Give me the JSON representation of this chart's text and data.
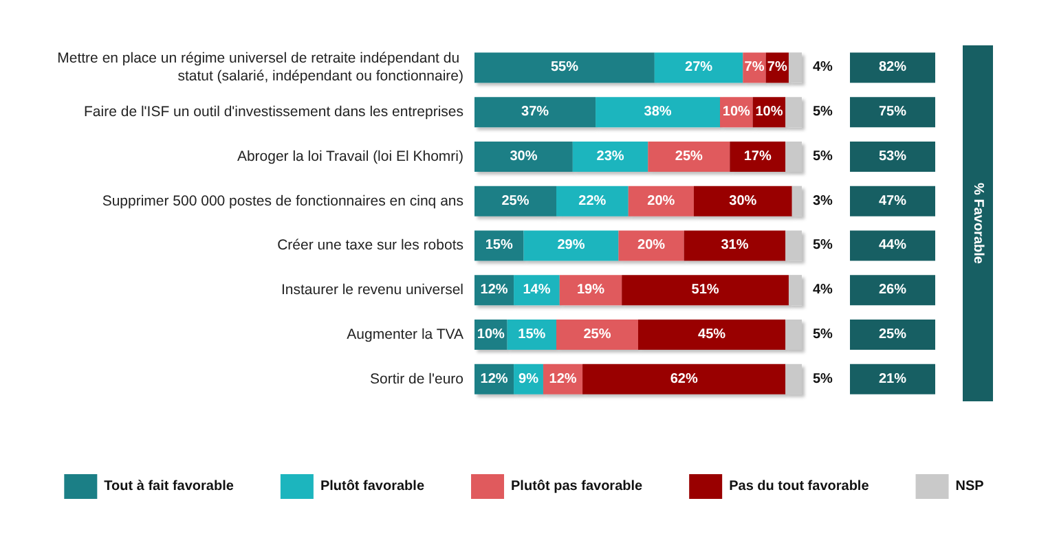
{
  "chart_data": {
    "type": "bar",
    "orientation": "horizontal",
    "stacked": true,
    "tick_labels": "y",
    "grid": false,
    "legend": "bottom",
    "categories": [
      "Mettre en place un régime universel de retraite indépendant du statut (salarié, indépendant ou fonctionnaire)",
      "Faire de l'ISF un outil d'investissement dans les entreprises",
      "Abroger la loi Travail (loi El Khomri)",
      "Supprimer 500 000 postes de fonctionnaires en cinq ans",
      "Créer une taxe sur les robots",
      "Instaurer le revenu universel",
      "Augmenter la TVA",
      "Sortir de l'euro"
    ],
    "series": [
      {
        "name": "Tout à fait favorable",
        "color": "#1b7f86",
        "values": [
          55,
          37,
          30,
          25,
          15,
          12,
          10,
          12
        ],
        "value_labels": [
          "55%",
          "37%",
          "30%",
          "25%",
          "15%",
          "12%",
          "10%",
          "12%"
        ]
      },
      {
        "name": "Plutôt favorable",
        "color": "#1cb5be",
        "values": [
          27,
          38,
          23,
          22,
          29,
          14,
          15,
          9
        ],
        "value_labels": [
          "27%",
          "38%",
          "23%",
          "22%",
          "29%",
          "14%",
          "15%",
          "9%"
        ]
      },
      {
        "name": "Plutôt pas favorable",
        "color": "#e05a5d",
        "values": [
          7,
          10,
          25,
          20,
          20,
          19,
          25,
          12
        ],
        "value_labels": [
          "7%",
          "10%",
          "25%",
          "20%",
          "20%",
          "19%",
          "25%",
          "12%"
        ]
      },
      {
        "name": "Pas du tout favorable",
        "color": "#990000",
        "values": [
          7,
          10,
          17,
          30,
          31,
          51,
          45,
          62
        ],
        "value_labels": [
          "7%",
          "10%",
          "17%",
          "30%",
          "31%",
          "51%",
          "45%",
          "62%"
        ]
      },
      {
        "name": "NSP",
        "color": "#c9c9c9",
        "values": [
          4,
          5,
          5,
          3,
          5,
          4,
          5,
          5
        ],
        "value_labels": [
          "4%",
          "5%",
          "5%",
          "3%",
          "5%",
          "4%",
          "5%",
          "5%"
        ]
      }
    ],
    "annotations": [
      "82%",
      "75%",
      "53%",
      "47%",
      "44%",
      "26%",
      "25%",
      "21%",
      "% Favorable"
    ]
  }
}
